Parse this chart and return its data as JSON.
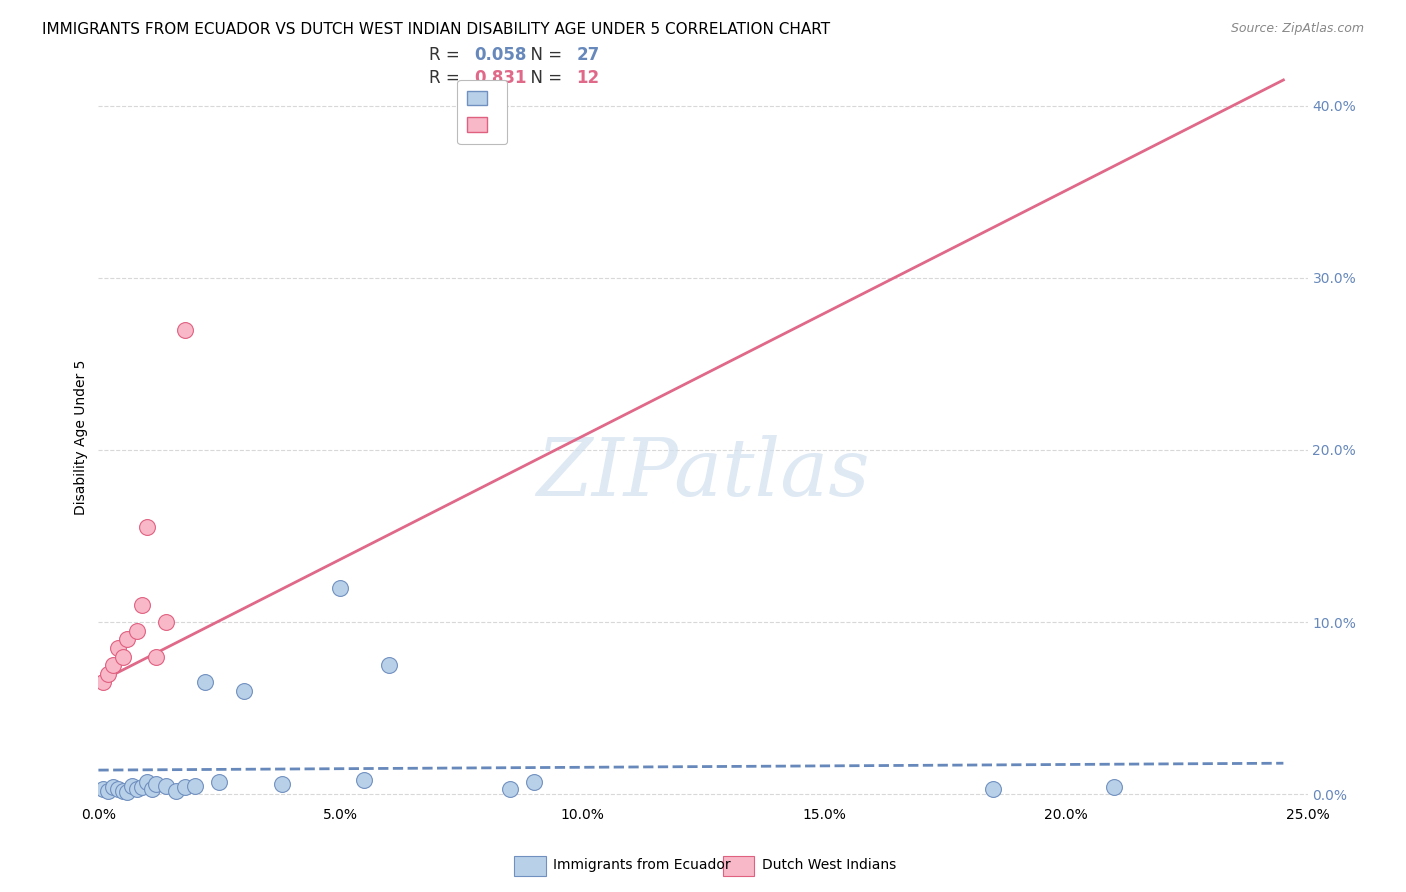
{
  "title": "IMMIGRANTS FROM ECUADOR VS DUTCH WEST INDIAN DISABILITY AGE UNDER 5 CORRELATION CHART",
  "source": "Source: ZipAtlas.com",
  "xlabel_label": "Immigrants from Ecuador",
  "ylabel_label": "Disability Age Under 5",
  "xlim": [
    0.0,
    0.25
  ],
  "ylim": [
    -0.005,
    0.42
  ],
  "xticks": [
    0.0,
    0.05,
    0.1,
    0.15,
    0.2,
    0.25
  ],
  "yticks": [
    0.0,
    0.1,
    0.2,
    0.3,
    0.4
  ],
  "ytick_labels_right": [
    "0.0%",
    "10.0%",
    "20.0%",
    "30.0%",
    "40.0%"
  ],
  "xtick_labels": [
    "0.0%",
    "5.0%",
    "10.0%",
    "15.0%",
    "20.0%",
    "25.0%"
  ],
  "ecuador_R": 0.058,
  "ecuador_N": 27,
  "dutch_R": 0.831,
  "dutch_N": 12,
  "ecuador_color": "#b8d0e8",
  "dutch_color": "#f8b8c8",
  "ecuador_edge_color": "#7090c0",
  "dutch_edge_color": "#e06080",
  "ecuador_line_color": "#6688bb",
  "dutch_line_color": "#e06888",
  "ecuador_scatter_x": [
    0.001,
    0.002,
    0.003,
    0.004,
    0.005,
    0.006,
    0.007,
    0.008,
    0.009,
    0.01,
    0.011,
    0.012,
    0.014,
    0.016,
    0.018,
    0.02,
    0.022,
    0.025,
    0.03,
    0.038,
    0.05,
    0.055,
    0.06,
    0.085,
    0.09,
    0.185,
    0.21
  ],
  "ecuador_scatter_y": [
    0.003,
    0.002,
    0.004,
    0.003,
    0.002,
    0.001,
    0.005,
    0.003,
    0.004,
    0.007,
    0.003,
    0.006,
    0.005,
    0.002,
    0.004,
    0.005,
    0.065,
    0.007,
    0.06,
    0.006,
    0.12,
    0.008,
    0.075,
    0.003,
    0.007,
    0.003,
    0.004
  ],
  "dutch_scatter_x": [
    0.001,
    0.002,
    0.003,
    0.004,
    0.005,
    0.006,
    0.008,
    0.009,
    0.01,
    0.012,
    0.014,
    0.018
  ],
  "dutch_scatter_y": [
    0.065,
    0.07,
    0.075,
    0.085,
    0.08,
    0.09,
    0.095,
    0.11,
    0.155,
    0.08,
    0.1,
    0.27
  ],
  "ecuador_line_x": [
    0.0,
    0.245
  ],
  "ecuador_line_y": [
    0.014,
    0.018
  ],
  "dutch_line_x": [
    0.0,
    0.245
  ],
  "dutch_line_y": [
    0.065,
    0.415
  ],
  "watermark": "ZIPatlas",
  "background_color": "#ffffff",
  "grid_color": "#d8d8d8",
  "title_fontsize": 11,
  "source_fontsize": 9,
  "legend_fontsize": 12,
  "axis_label_fontsize": 10,
  "tick_fontsize": 10,
  "right_tick_color": "#6688bb"
}
